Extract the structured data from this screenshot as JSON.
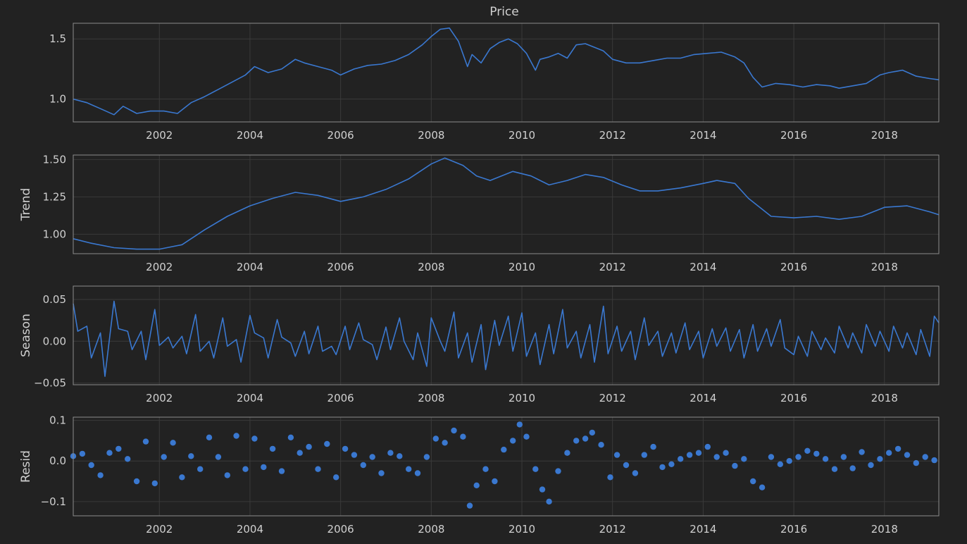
{
  "chart_data": [
    {
      "type": "line",
      "title": "Price",
      "ylabel": "",
      "xlim": [
        2000.1,
        2019.2
      ],
      "ylim": [
        0.81,
        1.63
      ],
      "xticks": [
        2002,
        2004,
        2006,
        2008,
        2010,
        2012,
        2014,
        2016,
        2018
      ],
      "xtick_labels": [
        "2002",
        "2004",
        "2006",
        "2008",
        "2010",
        "2012",
        "2014",
        "2016",
        "2018"
      ],
      "yticks": [
        1.0,
        1.5
      ],
      "ytick_labels": [
        "1.0",
        "1.5"
      ],
      "grid": true,
      "color": "#3a78d0",
      "x": [
        2000.1,
        2000.4,
        2000.7,
        2001.0,
        2001.2,
        2001.5,
        2001.8,
        2002.1,
        2002.4,
        2002.7,
        2003.0,
        2003.3,
        2003.6,
        2003.9,
        2004.1,
        2004.4,
        2004.7,
        2005.0,
        2005.2,
        2005.5,
        2005.8,
        2006.0,
        2006.3,
        2006.6,
        2006.9,
        2007.2,
        2007.5,
        2007.8,
        2008.0,
        2008.2,
        2008.4,
        2008.6,
        2008.8,
        2008.9,
        2009.1,
        2009.3,
        2009.5,
        2009.7,
        2009.9,
        2010.1,
        2010.3,
        2010.4,
        2010.6,
        2010.8,
        2011.0,
        2011.2,
        2011.4,
        2011.6,
        2011.8,
        2012.0,
        2012.3,
        2012.6,
        2012.9,
        2013.2,
        2013.5,
        2013.8,
        2014.1,
        2014.4,
        2014.7,
        2014.9,
        2015.1,
        2015.3,
        2015.6,
        2015.9,
        2016.2,
        2016.5,
        2016.8,
        2017.0,
        2017.3,
        2017.6,
        2017.9,
        2018.1,
        2018.4,
        2018.7,
        2019.0,
        2019.2
      ],
      "y": [
        1.0,
        0.97,
        0.92,
        0.87,
        0.94,
        0.88,
        0.9,
        0.9,
        0.88,
        0.97,
        1.02,
        1.08,
        1.14,
        1.2,
        1.27,
        1.22,
        1.25,
        1.33,
        1.3,
        1.27,
        1.24,
        1.2,
        1.25,
        1.28,
        1.29,
        1.32,
        1.37,
        1.45,
        1.52,
        1.58,
        1.59,
        1.48,
        1.27,
        1.37,
        1.3,
        1.42,
        1.47,
        1.5,
        1.46,
        1.38,
        1.24,
        1.33,
        1.35,
        1.38,
        1.34,
        1.45,
        1.46,
        1.43,
        1.4,
        1.33,
        1.3,
        1.3,
        1.32,
        1.34,
        1.34,
        1.37,
        1.38,
        1.39,
        1.35,
        1.3,
        1.18,
        1.1,
        1.13,
        1.12,
        1.1,
        1.12,
        1.11,
        1.09,
        1.11,
        1.13,
        1.2,
        1.22,
        1.24,
        1.19,
        1.17,
        1.16
      ]
    },
    {
      "type": "line",
      "title": "",
      "ylabel": "Trend",
      "xlim": [
        2000.1,
        2019.2
      ],
      "ylim": [
        0.87,
        1.53
      ],
      "xticks": [
        2002,
        2004,
        2006,
        2008,
        2010,
        2012,
        2014,
        2016,
        2018
      ],
      "xtick_labels": [
        "2002",
        "2004",
        "2006",
        "2008",
        "2010",
        "2012",
        "2014",
        "2016",
        "2018"
      ],
      "yticks": [
        1.0,
        1.25,
        1.5
      ],
      "ytick_labels": [
        "1.00",
        "1.25",
        "1.50"
      ],
      "grid": true,
      "color": "#3a78d0",
      "x": [
        2000.1,
        2000.5,
        2001.0,
        2001.5,
        2002.0,
        2002.5,
        2003.0,
        2003.5,
        2004.0,
        2004.5,
        2005.0,
        2005.5,
        2006.0,
        2006.5,
        2007.0,
        2007.5,
        2008.0,
        2008.3,
        2008.7,
        2009.0,
        2009.3,
        2009.8,
        2010.2,
        2010.6,
        2011.0,
        2011.4,
        2011.8,
        2012.2,
        2012.6,
        2013.0,
        2013.5,
        2014.0,
        2014.3,
        2014.7,
        2015.0,
        2015.5,
        2016.0,
        2016.5,
        2017.0,
        2017.5,
        2018.0,
        2018.5,
        2019.0,
        2019.2
      ],
      "y": [
        0.97,
        0.94,
        0.91,
        0.9,
        0.9,
        0.93,
        1.03,
        1.12,
        1.19,
        1.24,
        1.28,
        1.26,
        1.22,
        1.25,
        1.3,
        1.37,
        1.47,
        1.51,
        1.46,
        1.39,
        1.36,
        1.42,
        1.39,
        1.33,
        1.36,
        1.4,
        1.38,
        1.33,
        1.29,
        1.29,
        1.31,
        1.34,
        1.36,
        1.34,
        1.24,
        1.12,
        1.11,
        1.12,
        1.1,
        1.12,
        1.18,
        1.19,
        1.15,
        1.13
      ]
    },
    {
      "type": "line",
      "title": "",
      "ylabel": "Season",
      "xlim": [
        2000.1,
        2019.2
      ],
      "ylim": [
        -0.052,
        0.066
      ],
      "xticks": [
        2002,
        2004,
        2006,
        2008,
        2010,
        2012,
        2014,
        2016,
        2018
      ],
      "xtick_labels": [
        "2002",
        "2004",
        "2006",
        "2008",
        "2010",
        "2012",
        "2014",
        "2016",
        "2018"
      ],
      "yticks": [
        -0.05,
        0.0,
        0.05
      ],
      "ytick_labels": [
        "−0.05",
        "0.00",
        "0.05"
      ],
      "grid": true,
      "color": "#3a78d0",
      "x": [
        2000.1,
        2000.2,
        2000.4,
        2000.5,
        2000.7,
        2000.8,
        2001.0,
        2001.1,
        2001.3,
        2001.4,
        2001.6,
        2001.7,
        2001.9,
        2002.0,
        2002.2,
        2002.3,
        2002.5,
        2002.6,
        2002.8,
        2002.9,
        2003.1,
        2003.2,
        2003.4,
        2003.5,
        2003.7,
        2003.8,
        2004.0,
        2004.1,
        2004.3,
        2004.4,
        2004.6,
        2004.7,
        2004.9,
        2005.0,
        2005.2,
        2005.3,
        2005.5,
        2005.6,
        2005.8,
        2005.9,
        2006.1,
        2006.2,
        2006.4,
        2006.5,
        2006.7,
        2006.8,
        2007.0,
        2007.1,
        2007.3,
        2007.4,
        2007.6,
        2007.7,
        2007.9,
        2008.0,
        2008.2,
        2008.3,
        2008.5,
        2008.6,
        2008.8,
        2008.9,
        2009.1,
        2009.2,
        2009.4,
        2009.5,
        2009.7,
        2009.8,
        2010.0,
        2010.1,
        2010.3,
        2010.4,
        2010.6,
        2010.7,
        2010.9,
        2011.0,
        2011.2,
        2011.3,
        2011.5,
        2011.6,
        2011.8,
        2011.9,
        2012.1,
        2012.2,
        2012.4,
        2012.5,
        2012.7,
        2012.8,
        2013.0,
        2013.1,
        2013.3,
        2013.4,
        2013.6,
        2013.7,
        2013.9,
        2014.0,
        2014.2,
        2014.3,
        2014.5,
        2014.6,
        2014.8,
        2014.9,
        2015.1,
        2015.2,
        2015.4,
        2015.5,
        2015.7,
        2015.8,
        2016.0,
        2016.1,
        2016.3,
        2016.4,
        2016.6,
        2016.7,
        2016.9,
        2017.0,
        2017.2,
        2017.3,
        2017.5,
        2017.6,
        2017.8,
        2017.9,
        2018.1,
        2018.2,
        2018.4,
        2018.5,
        2018.7,
        2018.8,
        2019.0,
        2019.1,
        2019.2
      ],
      "y": [
        0.045,
        0.012,
        0.018,
        -0.02,
        0.01,
        -0.042,
        0.048,
        0.015,
        0.012,
        -0.01,
        0.012,
        -0.022,
        0.038,
        -0.005,
        0.005,
        -0.008,
        0.006,
        -0.015,
        0.032,
        -0.012,
        0.0,
        -0.02,
        0.028,
        -0.006,
        0.002,
        -0.025,
        0.031,
        0.01,
        0.004,
        -0.02,
        0.026,
        0.005,
        -0.002,
        -0.018,
        0.012,
        -0.015,
        0.018,
        -0.012,
        -0.006,
        -0.016,
        0.018,
        -0.01,
        0.022,
        0.002,
        -0.004,
        -0.022,
        0.017,
        -0.01,
        0.028,
        0.0,
        -0.022,
        0.01,
        -0.03,
        0.028,
        0.0,
        -0.012,
        0.035,
        -0.02,
        0.01,
        -0.025,
        0.02,
        -0.034,
        0.025,
        -0.005,
        0.03,
        -0.012,
        0.034,
        -0.018,
        0.01,
        -0.028,
        0.02,
        -0.015,
        0.038,
        -0.008,
        0.012,
        -0.02,
        0.02,
        -0.025,
        0.042,
        -0.015,
        0.018,
        -0.012,
        0.012,
        -0.022,
        0.028,
        -0.005,
        0.012,
        -0.018,
        0.01,
        -0.014,
        0.022,
        -0.01,
        0.012,
        -0.02,
        0.015,
        -0.006,
        0.016,
        -0.012,
        0.014,
        -0.02,
        0.02,
        -0.012,
        0.015,
        -0.006,
        0.026,
        -0.008,
        -0.016,
        0.006,
        -0.018,
        0.012,
        -0.01,
        0.004,
        -0.014,
        0.018,
        -0.008,
        0.01,
        -0.014,
        0.02,
        -0.006,
        0.012,
        -0.012,
        0.018,
        -0.008,
        0.01,
        -0.016,
        0.014,
        -0.018,
        0.03,
        0.022
      ]
    },
    {
      "type": "scatter",
      "title": "",
      "ylabel": "Resid",
      "xlim": [
        2000.1,
        2019.2
      ],
      "ylim": [
        -0.135,
        0.108
      ],
      "xticks": [
        2002,
        2004,
        2006,
        2008,
        2010,
        2012,
        2014,
        2016,
        2018
      ],
      "xtick_labels": [
        "2002",
        "2004",
        "2006",
        "2008",
        "2010",
        "2012",
        "2014",
        "2016",
        "2018"
      ],
      "yticks": [
        -0.1,
        0.0,
        0.1
      ],
      "ytick_labels": [
        "−0.1",
        "0.0",
        "0.1"
      ],
      "grid": true,
      "color": "#3a78d0",
      "x": [
        2000.1,
        2000.3,
        2000.5,
        2000.7,
        2000.9,
        2001.1,
        2001.3,
        2001.5,
        2001.7,
        2001.9,
        2002.1,
        2002.3,
        2002.5,
        2002.7,
        2002.9,
        2003.1,
        2003.3,
        2003.5,
        2003.7,
        2003.9,
        2004.1,
        2004.3,
        2004.5,
        2004.7,
        2004.9,
        2005.1,
        2005.3,
        2005.5,
        2005.7,
        2005.9,
        2006.1,
        2006.3,
        2006.5,
        2006.7,
        2006.9,
        2007.1,
        2007.3,
        2007.5,
        2007.7,
        2007.9,
        2008.1,
        2008.3,
        2008.5,
        2008.7,
        2008.85,
        2009.0,
        2009.2,
        2009.4,
        2009.6,
        2009.8,
        2009.95,
        2010.1,
        2010.3,
        2010.45,
        2010.6,
        2010.8,
        2011.0,
        2011.2,
        2011.4,
        2011.55,
        2011.75,
        2011.95,
        2012.1,
        2012.3,
        2012.5,
        2012.7,
        2012.9,
        2013.1,
        2013.3,
        2013.5,
        2013.7,
        2013.9,
        2014.1,
        2014.3,
        2014.5,
        2014.7,
        2014.9,
        2015.1,
        2015.3,
        2015.5,
        2015.7,
        2015.9,
        2016.1,
        2016.3,
        2016.5,
        2016.7,
        2016.9,
        2017.1,
        2017.3,
        2017.5,
        2017.7,
        2017.9,
        2018.1,
        2018.3,
        2018.5,
        2018.7,
        2018.9,
        2019.1
      ],
      "y": [
        0.012,
        0.018,
        -0.01,
        -0.035,
        0.02,
        0.03,
        0.005,
        -0.05,
        0.048,
        -0.055,
        0.01,
        0.045,
        -0.04,
        0.012,
        -0.02,
        0.058,
        0.01,
        -0.035,
        0.062,
        -0.02,
        0.055,
        -0.015,
        0.03,
        -0.025,
        0.058,
        0.02,
        0.035,
        -0.02,
        0.042,
        -0.04,
        0.03,
        0.015,
        -0.01,
        0.01,
        -0.03,
        0.02,
        0.012,
        -0.02,
        -0.03,
        0.01,
        0.055,
        0.045,
        0.075,
        0.06,
        -0.11,
        -0.06,
        -0.02,
        -0.05,
        0.028,
        0.05,
        0.09,
        0.06,
        -0.02,
        -0.07,
        -0.1,
        -0.025,
        0.02,
        0.05,
        0.055,
        0.07,
        0.04,
        -0.04,
        0.015,
        -0.01,
        -0.03,
        0.015,
        0.035,
        -0.015,
        -0.008,
        0.005,
        0.015,
        0.02,
        0.035,
        0.01,
        0.02,
        -0.012,
        0.005,
        -0.05,
        -0.065,
        0.01,
        -0.008,
        0.0,
        0.01,
        0.025,
        0.018,
        0.005,
        -0.02,
        0.01,
        -0.018,
        0.022,
        -0.01,
        0.005,
        0.02,
        0.03,
        0.015,
        -0.005,
        0.01,
        0.002
      ]
    }
  ]
}
